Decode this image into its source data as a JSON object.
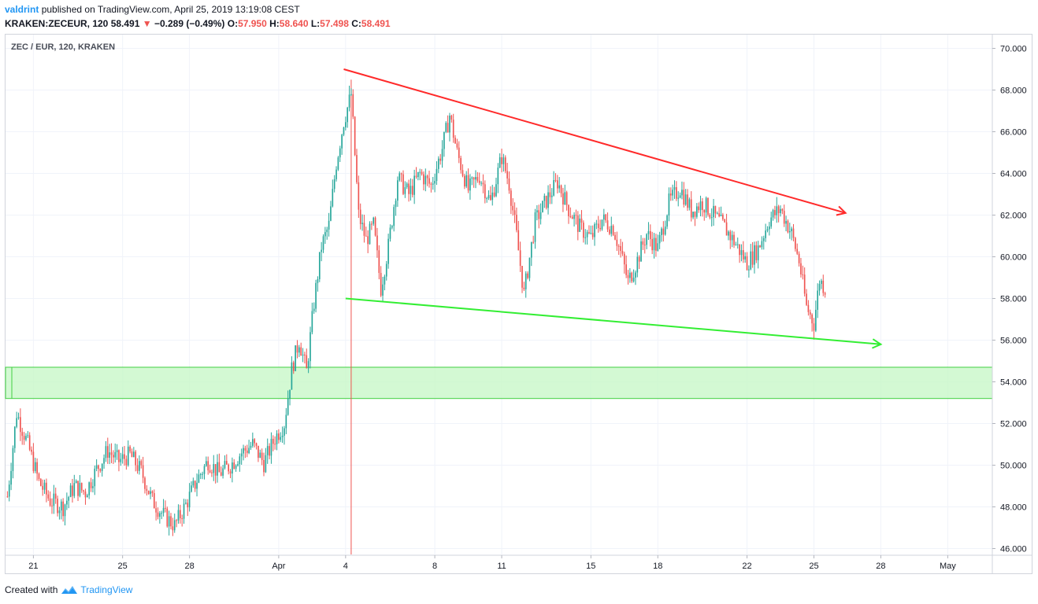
{
  "header": {
    "author": "valdrint",
    "published_text": "published on TradingView.com, April 25, 2019 13:19:08 CEST",
    "symbol": "KRAKEN:ZECEUR, 120",
    "last_price": "58.491",
    "change": "−0.289 (−0.49%)",
    "open_label": "O:",
    "open": "57.950",
    "high_label": "H:",
    "high": "58.640",
    "low_label": "L:",
    "low": "57.498",
    "close_label": "C:",
    "close": "58.491"
  },
  "chart_caption": "ZEC / EUR, 120, KRAKEN",
  "footer": {
    "created_text": "Created with",
    "brand": "TradingView",
    "icon": "tradingview-logo-icon"
  },
  "colors": {
    "up": "#26a69a",
    "down": "#ef5350",
    "resistance": "#ff2a2a",
    "support": "#33ee33",
    "zone_fill": "#c8f7c8",
    "zone_border": "#40d040"
  },
  "chart_data": {
    "type": "candlestick",
    "title": "ZEC / EUR, 120, KRAKEN",
    "ylim": [
      46,
      70
    ],
    "yticks": [
      "70.000",
      "68.000",
      "66.000",
      "64.000",
      "62.000",
      "60.000",
      "58.000",
      "56.000",
      "54.000",
      "52.000",
      "50.000",
      "48.000",
      "46.000"
    ],
    "xlim": [
      "2019-03-19 18:00",
      "2019-05-03 00:00"
    ],
    "xticks": [
      {
        "label": "21",
        "date": "2019-03-21"
      },
      {
        "label": "25",
        "date": "2019-03-25"
      },
      {
        "label": "28",
        "date": "2019-03-28"
      },
      {
        "label": "Apr",
        "date": "2019-04-01"
      },
      {
        "label": "4",
        "date": "2019-04-04"
      },
      {
        "label": "8",
        "date": "2019-04-08"
      },
      {
        "label": "11",
        "date": "2019-04-11"
      },
      {
        "label": "15",
        "date": "2019-04-15"
      },
      {
        "label": "18",
        "date": "2019-04-18"
      },
      {
        "label": "22",
        "date": "2019-04-22"
      },
      {
        "label": "25",
        "date": "2019-04-25"
      },
      {
        "label": "28",
        "date": "2019-04-28"
      },
      {
        "label": "May",
        "date": "2019-05-01"
      }
    ],
    "grid": true,
    "series_close": [
      {
        "date": "2019-03-19 20:00",
        "close": 48.5
      },
      {
        "date": "2019-03-20 06:00",
        "close": 52.5
      },
      {
        "date": "2019-03-20 18:00",
        "close": 51.0
      },
      {
        "date": "2019-03-21 06:00",
        "close": 49.2
      },
      {
        "date": "2019-03-21 18:00",
        "close": 48.3
      },
      {
        "date": "2019-03-22 08:00",
        "close": 48.0
      },
      {
        "date": "2019-03-22 20:00",
        "close": 49.0
      },
      {
        "date": "2019-03-23 08:00",
        "close": 48.7
      },
      {
        "date": "2019-03-23 20:00",
        "close": 49.8
      },
      {
        "date": "2019-03-24 08:00",
        "close": 50.7
      },
      {
        "date": "2019-03-24 20:00",
        "close": 50.2
      },
      {
        "date": "2019-03-25 08:00",
        "close": 50.5
      },
      {
        "date": "2019-03-25 20:00",
        "close": 49.7
      },
      {
        "date": "2019-03-26 08:00",
        "close": 48.3
      },
      {
        "date": "2019-03-26 20:00",
        "close": 47.6
      },
      {
        "date": "2019-03-27 08:00",
        "close": 47.1
      },
      {
        "date": "2019-03-27 20:00",
        "close": 48.1
      },
      {
        "date": "2019-03-28 08:00",
        "close": 49.3
      },
      {
        "date": "2019-03-28 20:00",
        "close": 50.2
      },
      {
        "date": "2019-03-29 08:00",
        "close": 49.6
      },
      {
        "date": "2019-03-29 20:00",
        "close": 50.0
      },
      {
        "date": "2019-03-30 08:00",
        "close": 50.6
      },
      {
        "date": "2019-03-30 20:00",
        "close": 51.0
      },
      {
        "date": "2019-03-31 08:00",
        "close": 50.1
      },
      {
        "date": "2019-03-31 20:00",
        "close": 51.3
      },
      {
        "date": "2019-04-01 06:00",
        "close": 52.0
      },
      {
        "date": "2019-04-01 14:00",
        "close": 54.6
      },
      {
        "date": "2019-04-01 22:00",
        "close": 56.0
      },
      {
        "date": "2019-04-02 06:00",
        "close": 54.5
      },
      {
        "date": "2019-04-02 14:00",
        "close": 57.8
      },
      {
        "date": "2019-04-02 22:00",
        "close": 60.5
      },
      {
        "date": "2019-04-03 06:00",
        "close": 61.5
      },
      {
        "date": "2019-04-03 14:00",
        "close": 64.5
      },
      {
        "date": "2019-04-03 22:00",
        "close": 66.5
      },
      {
        "date": "2019-04-04 06:00",
        "close": 67.8
      },
      {
        "date": "2019-04-04 14:00",
        "close": 62.0
      },
      {
        "date": "2019-04-04 22:00",
        "close": 60.8
      },
      {
        "date": "2019-04-05 06:00",
        "close": 61.5
      },
      {
        "date": "2019-04-05 14:00",
        "close": 58.5
      },
      {
        "date": "2019-04-05 22:00",
        "close": 60.5
      },
      {
        "date": "2019-04-06 08:00",
        "close": 63.8
      },
      {
        "date": "2019-04-06 20:00",
        "close": 63.0
      },
      {
        "date": "2019-04-07 08:00",
        "close": 64.0
      },
      {
        "date": "2019-04-07 20:00",
        "close": 63.4
      },
      {
        "date": "2019-04-08 08:00",
        "close": 65.2
      },
      {
        "date": "2019-04-08 16:00",
        "close": 66.8
      },
      {
        "date": "2019-04-09 00:00",
        "close": 65.0
      },
      {
        "date": "2019-04-09 12:00",
        "close": 63.2
      },
      {
        "date": "2019-04-10 00:00",
        "close": 63.9
      },
      {
        "date": "2019-04-10 12:00",
        "close": 62.6
      },
      {
        "date": "2019-04-11 00:00",
        "close": 64.8
      },
      {
        "date": "2019-04-11 08:00",
        "close": 63.5
      },
      {
        "date": "2019-04-11 16:00",
        "close": 61.0
      },
      {
        "date": "2019-04-12 00:00",
        "close": 58.2
      },
      {
        "date": "2019-04-12 12:00",
        "close": 61.7
      },
      {
        "date": "2019-04-13 00:00",
        "close": 62.7
      },
      {
        "date": "2019-04-13 12:00",
        "close": 63.6
      },
      {
        "date": "2019-04-14 00:00",
        "close": 62.3
      },
      {
        "date": "2019-04-14 12:00",
        "close": 61.4
      },
      {
        "date": "2019-04-15 00:00",
        "close": 60.9
      },
      {
        "date": "2019-04-15 12:00",
        "close": 61.8
      },
      {
        "date": "2019-04-16 00:00",
        "close": 61.4
      },
      {
        "date": "2019-04-16 08:00",
        "close": 60.2
      },
      {
        "date": "2019-04-16 16:00",
        "close": 58.8
      },
      {
        "date": "2019-04-17 00:00",
        "close": 59.6
      },
      {
        "date": "2019-04-17 12:00",
        "close": 61.1
      },
      {
        "date": "2019-04-18 00:00",
        "close": 60.4
      },
      {
        "date": "2019-04-18 12:00",
        "close": 62.6
      },
      {
        "date": "2019-04-19 00:00",
        "close": 63.3
      },
      {
        "date": "2019-04-19 12:00",
        "close": 62.2
      },
      {
        "date": "2019-04-20 00:00",
        "close": 62.6
      },
      {
        "date": "2019-04-20 12:00",
        "close": 62.0
      },
      {
        "date": "2019-04-21 00:00",
        "close": 61.4
      },
      {
        "date": "2019-04-21 12:00",
        "close": 60.6
      },
      {
        "date": "2019-04-22 00:00",
        "close": 59.7
      },
      {
        "date": "2019-04-22 12:00",
        "close": 60.4
      },
      {
        "date": "2019-04-23 00:00",
        "close": 61.8
      },
      {
        "date": "2019-04-23 12:00",
        "close": 62.3
      },
      {
        "date": "2019-04-24 00:00",
        "close": 61.1
      },
      {
        "date": "2019-04-24 08:00",
        "close": 59.8
      },
      {
        "date": "2019-04-24 16:00",
        "close": 57.6
      },
      {
        "date": "2019-04-25 00:00",
        "close": 56.8
      },
      {
        "date": "2019-04-25 06:00",
        "close": 58.9
      },
      {
        "date": "2019-04-25 12:00",
        "close": 58.491
      }
    ],
    "annotations": [
      {
        "kind": "trendline",
        "name": "resistance",
        "color": "#ff2a2a",
        "from": {
          "date": "2019-04-03 22:00",
          "value": 69.0
        },
        "to": {
          "date": "2019-04-26 10:00",
          "value": 62.1
        }
      },
      {
        "kind": "trendline",
        "name": "support",
        "color": "#33ee33",
        "from": {
          "date": "2019-04-04 00:00",
          "value": 58.0
        },
        "to": {
          "date": "2019-04-28 00:00",
          "value": 55.8
        }
      },
      {
        "kind": "zone",
        "name": "support-zone",
        "color": "#c8f7c8",
        "from": {
          "date": "2019-03-19 18:00"
        },
        "y1": 53.2,
        "y2": 54.7
      },
      {
        "kind": "vline",
        "name": "vertical-marker",
        "color": "#ef5350",
        "date": "2019-04-04 06:00"
      }
    ]
  }
}
